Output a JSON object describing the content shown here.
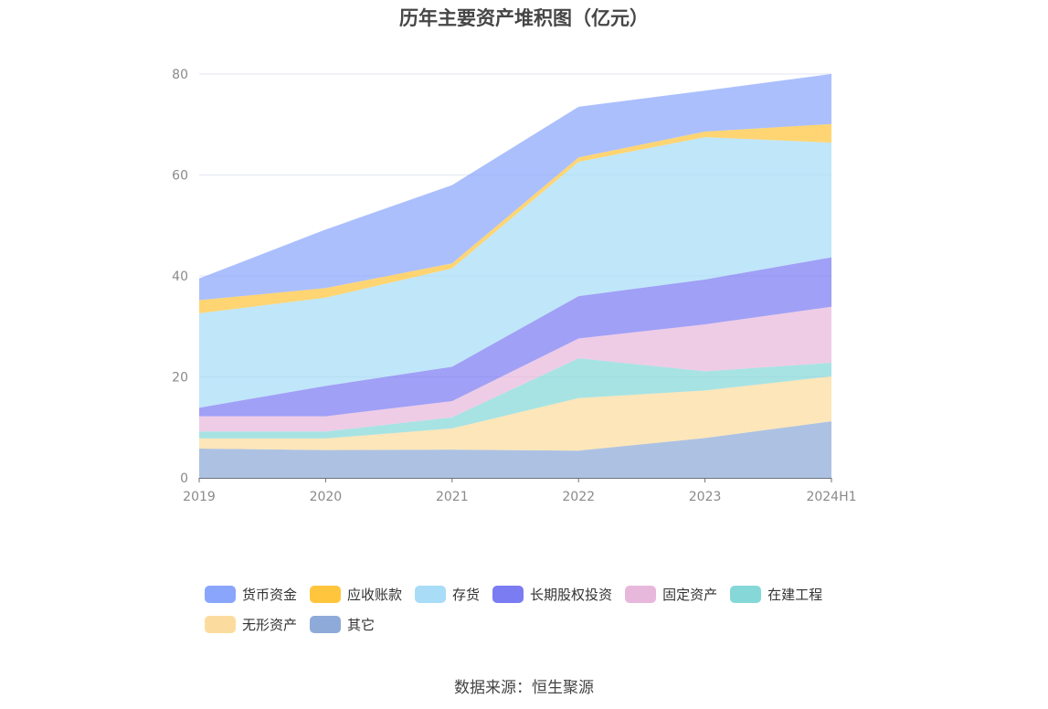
{
  "title": "历年主要资产堆积图（亿元）",
  "source": "数据来源：恒生聚源",
  "chart_data": {
    "type": "area",
    "stacked": true,
    "categories": [
      "2019",
      "2020",
      "2021",
      "2022",
      "2023",
      "2024H1"
    ],
    "ylim": [
      0,
      80
    ],
    "yticks": [
      0,
      20,
      40,
      60,
      80
    ],
    "grid": true,
    "legend_position": "bottom",
    "series": [
      {
        "name": "其它",
        "color": "#8eaad8",
        "values": [
          5.8,
          5.5,
          5.6,
          5.4,
          7.9,
          11.2
        ]
      },
      {
        "name": "无形资产",
        "color": "#fcdc9e",
        "values": [
          2.0,
          2.3,
          4.2,
          10.4,
          9.4,
          8.9
        ]
      },
      {
        "name": "在建工程",
        "color": "#86d8d8",
        "values": [
          1.4,
          1.4,
          2.2,
          7.9,
          3.8,
          2.7
        ]
      },
      {
        "name": "固定资产",
        "color": "#e8b8dc",
        "values": [
          3.0,
          3.0,
          3.2,
          3.9,
          9.3,
          11.1
        ]
      },
      {
        "name": "长期股权投资",
        "color": "#7b7cf2",
        "values": [
          1.7,
          6.0,
          6.8,
          8.4,
          8.9,
          9.8
        ]
      },
      {
        "name": "存货",
        "color": "#a8dcf7",
        "values": [
          18.7,
          17.5,
          19.5,
          26.6,
          28.2,
          22.7
        ]
      },
      {
        "name": "应收账款",
        "color": "#ffc53d",
        "values": [
          2.6,
          1.9,
          1.0,
          0.9,
          1.1,
          3.7
        ]
      },
      {
        "name": "货币资金",
        "color": "#8aa6fc",
        "values": [
          4.3,
          11.6,
          15.5,
          10.0,
          8.1,
          9.9
        ]
      }
    ]
  },
  "legend": [
    {
      "name": "货币资金",
      "color": "#8aa6fc"
    },
    {
      "name": "应收账款",
      "color": "#ffc53d"
    },
    {
      "name": "存货",
      "color": "#a8dcf7"
    },
    {
      "name": "长期股权投资",
      "color": "#7b7cf2"
    },
    {
      "name": "固定资产",
      "color": "#e8b8dc"
    },
    {
      "name": "在建工程",
      "color": "#86d8d8"
    },
    {
      "name": "无形资产",
      "color": "#fcdc9e"
    },
    {
      "name": "其它",
      "color": "#8eaad8"
    }
  ]
}
